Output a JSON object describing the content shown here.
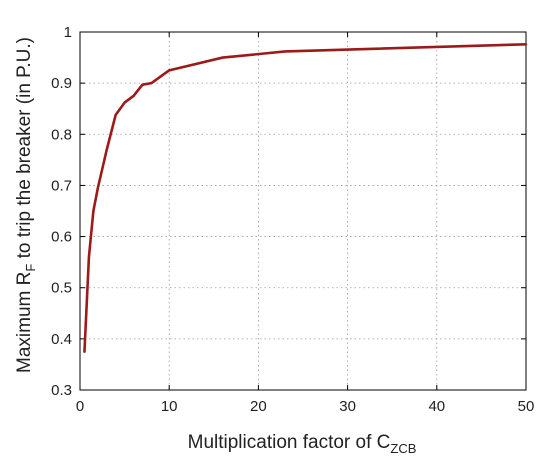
{
  "chart_data": {
    "type": "line",
    "xlabel": "Multiplication factor of C",
    "xlabel_subscript": "ZCB",
    "ylabel_prefix": "Maximum R",
    "ylabel_subscript": "F",
    "ylabel_suffix": " to trip the breaker (in P.U.)",
    "xlim": [
      0,
      50
    ],
    "ylim": [
      0.3,
      1.0
    ],
    "x_ticks": [
      "0",
      "10",
      "20",
      "30",
      "40",
      "50"
    ],
    "y_ticks": [
      "0.3",
      "0.4",
      "0.5",
      "0.6",
      "0.7",
      "0.8",
      "0.9",
      "1"
    ],
    "grid": true,
    "series": [
      {
        "color": "#9b1b1b",
        "x": [
          0.5,
          1,
          1.5,
          2,
          3,
          4,
          5,
          6,
          7,
          8,
          10,
          16,
          23,
          50
        ],
        "y": [
          0.375,
          0.56,
          0.65,
          0.695,
          0.77,
          0.838,
          0.862,
          0.875,
          0.897,
          0.9,
          0.925,
          0.95,
          0.962,
          0.976
        ]
      }
    ]
  }
}
